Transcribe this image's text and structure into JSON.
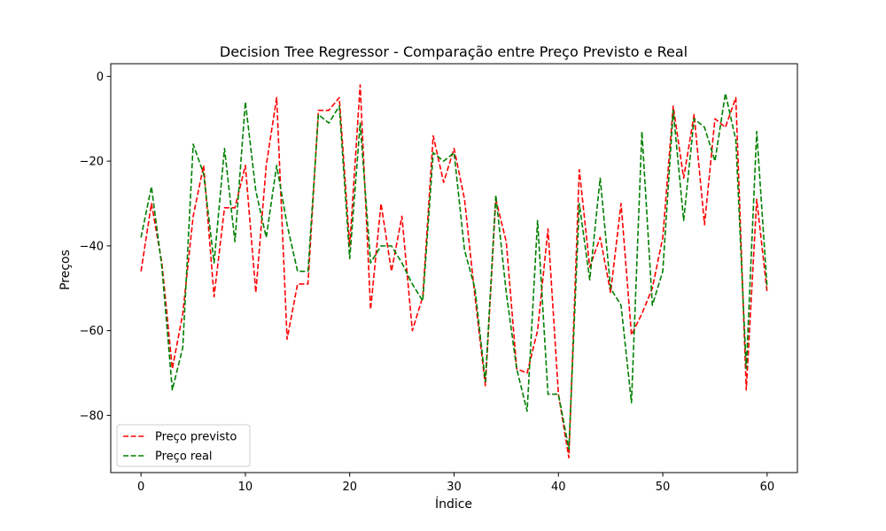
{
  "chart_data": {
    "type": "line",
    "title": "Decision Tree Regressor - Comparação entre Preço Previsto e Real",
    "xlabel": "Índice",
    "ylabel": "Preços",
    "xlim": [
      -2.9,
      62.9
    ],
    "ylim": [
      -93.5,
      3
    ],
    "xticks": [
      0,
      10,
      20,
      30,
      40,
      50,
      60
    ],
    "yticks": [
      0,
      -20,
      -40,
      -60,
      -80
    ],
    "grid": false,
    "legend_position": "lower-left",
    "series": [
      {
        "name": "Preço previsto",
        "color": "#ff0000",
        "style": "dashed",
        "values": [
          -46,
          -30,
          -44,
          -69,
          -56,
          -33,
          -21,
          -52,
          -31,
          -31,
          -21,
          -51,
          -21,
          -5,
          -62,
          -49,
          -49,
          -8,
          -8,
          -5,
          -40,
          -2,
          -55,
          -30,
          -46,
          -33,
          -60,
          -52,
          -14,
          -25,
          -17,
          -29,
          -52,
          -73,
          -29,
          -39,
          -69,
          -70,
          -60,
          -36,
          -75,
          -90,
          -22,
          -45,
          -38,
          -51,
          -30,
          -61,
          -56,
          -50,
          -38,
          -7,
          -24,
          -9,
          -35,
          -10,
          -12,
          -5,
          -74,
          -29,
          -51
        ]
      },
      {
        "name": "Preço real",
        "color": "#008000",
        "style": "dashed",
        "values": [
          -38,
          -26,
          -45,
          -74,
          -64,
          -16,
          -23,
          -44,
          -17,
          -39,
          -6,
          -27,
          -38,
          -21,
          -35,
          -46,
          -46,
          -9,
          -11,
          -7,
          -43,
          -11,
          -44,
          -40,
          -40,
          -44,
          -49,
          -53,
          -18,
          -20,
          -18,
          -41,
          -50,
          -72,
          -28,
          -51,
          -69,
          -79,
          -34,
          -75,
          -75,
          -88,
          -30,
          -48,
          -24,
          -50,
          -54,
          -77,
          -13,
          -54,
          -46,
          -8,
          -34,
          -10,
          -12,
          -20,
          -4,
          -15,
          -69,
          -13,
          -50
        ]
      }
    ]
  }
}
